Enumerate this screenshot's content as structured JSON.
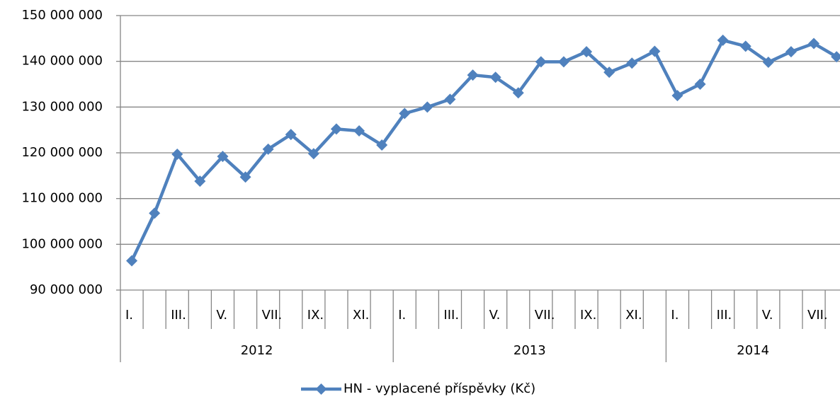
{
  "chart_data": {
    "type": "line",
    "categories": [
      "I.",
      null,
      "III.",
      null,
      "V.",
      null,
      "VII.",
      null,
      "IX.",
      null,
      "XI.",
      null,
      "I.",
      null,
      "III.",
      null,
      "V.",
      null,
      "VII.",
      null,
      "IX.",
      null,
      "XI.",
      null,
      "I.",
      null,
      "III.",
      null,
      "V.",
      null,
      "VII.",
      null
    ],
    "groups": [
      "2012",
      "2013",
      "2014"
    ],
    "series": [
      {
        "name": "HN - vyplacené příspěvky (Kč)",
        "color": "#4f81bd",
        "values": [
          96400000,
          106800000,
          119700000,
          113800000,
          119200000,
          114700000,
          120800000,
          124000000,
          119800000,
          125200000,
          124800000,
          121700000,
          128600000,
          130000000,
          131700000,
          137000000,
          136500000,
          133100000,
          139900000,
          139900000,
          142100000,
          137600000,
          139600000,
          142200000,
          132500000,
          135000000,
          144600000,
          143300000,
          139800000,
          142100000,
          143900000,
          141000000
        ]
      }
    ],
    "ylim": [
      90000000,
      150000000
    ],
    "yticks": [
      {
        "value": 90000000,
        "label": "90 000 000"
      },
      {
        "value": 100000000,
        "label": "100 000 000"
      },
      {
        "value": 110000000,
        "label": "110 000 000"
      },
      {
        "value": 120000000,
        "label": "120 000 000"
      },
      {
        "value": 130000000,
        "label": "130 000 000"
      },
      {
        "value": 140000000,
        "label": "140 000 000"
      },
      {
        "value": 150000000,
        "label": "150 000 000"
      }
    ],
    "grid": true,
    "legend": "bottom"
  }
}
